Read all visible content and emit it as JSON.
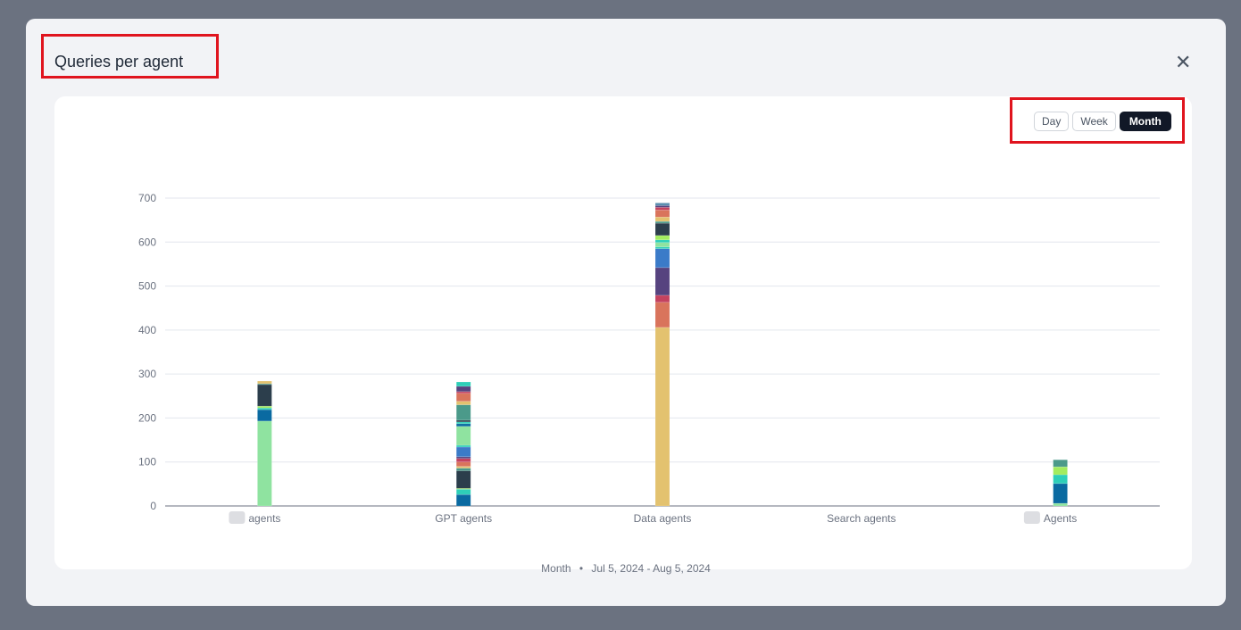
{
  "modal": {
    "title": "Queries per agent",
    "close_icon": "close-icon"
  },
  "toggle": {
    "options": [
      "Day",
      "Week",
      "Month"
    ],
    "selected": "Month"
  },
  "footer": {
    "period": "Month",
    "separator": "•",
    "range": "Jul 5, 2024 - Aug 5, 2024"
  },
  "chart_data": {
    "type": "bar",
    "stacked": true,
    "grid": true,
    "ylim": [
      0,
      700
    ],
    "yticks": [
      0,
      100,
      200,
      300,
      400,
      500,
      600,
      700
    ],
    "categories": [
      "agents",
      "GPT agents",
      "Data agents",
      "Search agents",
      "Agents"
    ],
    "category_prefix_blurred": [
      true,
      false,
      false,
      false,
      true
    ],
    "stacks": [
      [
        [
          193,
          "#8fe3a0"
        ],
        [
          26,
          "#0a6aa1"
        ],
        [
          4,
          "#2ecfb8"
        ],
        [
          4,
          "#a3ec5f"
        ],
        [
          49,
          "#2c3e4c"
        ],
        [
          2,
          "#4b9a8a"
        ],
        [
          6,
          "#e3c26f"
        ]
      ],
      [
        [
          26,
          "#0a6aa1"
        ],
        [
          12,
          "#2ecfb8"
        ],
        [
          2,
          "#a3ec5f"
        ],
        [
          40,
          "#2c3e4c"
        ],
        [
          6,
          "#4b9a8a"
        ],
        [
          4,
          "#e3c26f"
        ],
        [
          10,
          "#d9745c"
        ],
        [
          8,
          "#c4425f"
        ],
        [
          4,
          "#56437f"
        ],
        [
          22,
          "#3b7bc8"
        ],
        [
          4,
          "#2ecfb8"
        ],
        [
          43,
          "#8fe3a0"
        ],
        [
          6,
          "#0a6aa1"
        ],
        [
          4,
          "#2ecfb8"
        ],
        [
          4,
          "#2c3e4c"
        ],
        [
          35,
          "#4b9a8a"
        ],
        [
          8,
          "#e3c26f"
        ],
        [
          18,
          "#d9745c"
        ],
        [
          4,
          "#c4425f"
        ],
        [
          12,
          "#56437f"
        ],
        [
          10,
          "#2ecfb8"
        ]
      ],
      [
        [
          406,
          "#e3c26f"
        ],
        [
          57,
          "#d9745c"
        ],
        [
          16,
          "#c4425f"
        ],
        [
          63,
          "#56437f"
        ],
        [
          43,
          "#3b7bc8"
        ],
        [
          4,
          "#2ecfb8"
        ],
        [
          10,
          "#8fe3a0"
        ],
        [
          6,
          "#2ecfb8"
        ],
        [
          10,
          "#a3ec5f"
        ],
        [
          28,
          "#2c3e4c"
        ],
        [
          4,
          "#4b9a8a"
        ],
        [
          10,
          "#e3c26f"
        ],
        [
          16,
          "#d9745c"
        ],
        [
          6,
          "#c4425f"
        ],
        [
          4,
          "#56437f"
        ],
        [
          6,
          "#5b8fb0"
        ]
      ],
      [],
      [
        [
          6,
          "#8fe3a0"
        ],
        [
          45,
          "#0a6aa1"
        ],
        [
          20,
          "#2ecfb8"
        ],
        [
          18,
          "#a3ec5f"
        ],
        [
          16,
          "#4b9a8a"
        ]
      ]
    ]
  }
}
